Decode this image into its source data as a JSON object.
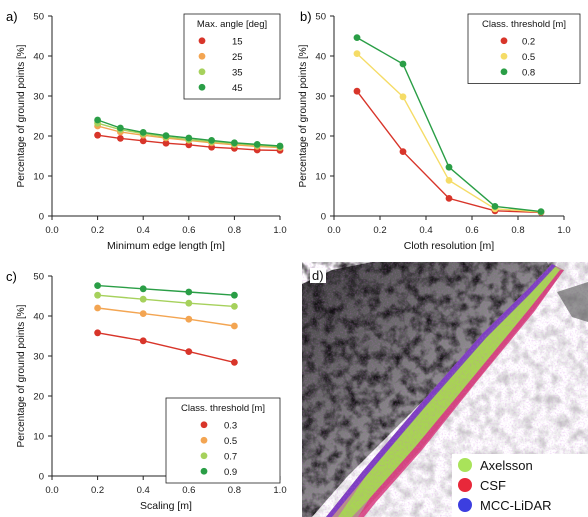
{
  "chart_data": [
    {
      "panel_label": "a)",
      "type": "line",
      "xlabel": "Minimum edge length [m]",
      "ylabel": "Percentage of ground points [%]",
      "xlim": [
        0.0,
        1.0
      ],
      "ylim": [
        0,
        50
      ],
      "xticks": [
        "0.0",
        "0.2",
        "0.4",
        "0.6",
        "0.8",
        "1.0"
      ],
      "yticks": [
        "0",
        "10",
        "20",
        "30",
        "40",
        "50"
      ],
      "x": [
        0.2,
        0.3,
        0.4,
        0.5,
        0.6,
        0.7,
        0.8,
        0.9,
        1.0
      ],
      "legend_title": "Max. angle [deg]",
      "legend_position": "top-right",
      "series": [
        {
          "name": "15",
          "color": "#d8352a",
          "values": [
            20.2,
            19.4,
            18.8,
            18.2,
            17.8,
            17.2,
            16.9,
            16.5,
            16.4
          ]
        },
        {
          "name": "25",
          "color": "#f3a552",
          "values": [
            22.5,
            21.0,
            20.2,
            19.5,
            18.9,
            18.3,
            17.8,
            17.4,
            17.1
          ]
        },
        {
          "name": "35",
          "color": "#a6d15c",
          "values": [
            23.2,
            21.6,
            20.6,
            19.8,
            19.1,
            18.6,
            18.1,
            17.7,
            17.3
          ]
        },
        {
          "name": "45",
          "color": "#2a9e46",
          "values": [
            24.0,
            22.0,
            20.9,
            20.1,
            19.5,
            18.9,
            18.3,
            17.9,
            17.5
          ]
        }
      ]
    },
    {
      "panel_label": "b)",
      "type": "line",
      "xlabel": "Cloth resolution [m]",
      "ylabel": "Percentage of ground points [%]",
      "xlim": [
        0.0,
        1.0
      ],
      "ylim": [
        0,
        50
      ],
      "xticks": [
        "0.0",
        "0.2",
        "0.4",
        "0.6",
        "0.8",
        "1.0"
      ],
      "yticks": [
        "0",
        "10",
        "20",
        "30",
        "40",
        "50"
      ],
      "x": [
        0.1,
        0.3,
        0.5,
        0.7,
        0.9
      ],
      "legend_title": "Class. threshold [m]",
      "legend_position": "top-right",
      "series": [
        {
          "name": "0.2",
          "color": "#d8352a",
          "values": [
            31.2,
            16.1,
            4.4,
            1.3,
            0.9
          ]
        },
        {
          "name": "0.5",
          "color": "#f5dc67",
          "values": [
            40.6,
            29.8,
            8.9,
            1.8,
            1.0
          ]
        },
        {
          "name": "0.8",
          "color": "#2a9e46",
          "values": [
            44.6,
            38.0,
            12.2,
            2.4,
            1.1
          ]
        }
      ]
    },
    {
      "panel_label": "c)",
      "type": "line",
      "xlabel": "Scaling [m]",
      "ylabel": "Percentage of ground points [%]",
      "xlim": [
        0.0,
        1.0
      ],
      "ylim": [
        0,
        50
      ],
      "xticks": [
        "0.0",
        "0.2",
        "0.4",
        "0.6",
        "0.8",
        "1.0"
      ],
      "yticks": [
        "0",
        "10",
        "20",
        "30",
        "40",
        "50"
      ],
      "x": [
        0.2,
        0.4,
        0.6,
        0.8
      ],
      "legend_title": "Class. threshold [m]",
      "legend_position": "bottom-right",
      "series": [
        {
          "name": "0.3",
          "color": "#d8352a",
          "values": [
            35.8,
            33.8,
            31.1,
            28.4
          ]
        },
        {
          "name": "0.5",
          "color": "#f3a552",
          "values": [
            42.0,
            40.6,
            39.2,
            37.5
          ]
        },
        {
          "name": "0.7",
          "color": "#a6d15c",
          "values": [
            45.2,
            44.2,
            43.2,
            42.4
          ]
        },
        {
          "name": "0.9",
          "color": "#2a9e46",
          "values": [
            47.6,
            46.8,
            46.0,
            45.2
          ]
        }
      ]
    }
  ],
  "map_panel": {
    "panel_label": "d)",
    "legend": [
      {
        "label": "Axelsson",
        "color": "#a9e35a"
      },
      {
        "label": "CSF",
        "color": "#e8283a"
      },
      {
        "label": "MCC-LiDAR",
        "color": "#3c3ee0"
      }
    ]
  }
}
